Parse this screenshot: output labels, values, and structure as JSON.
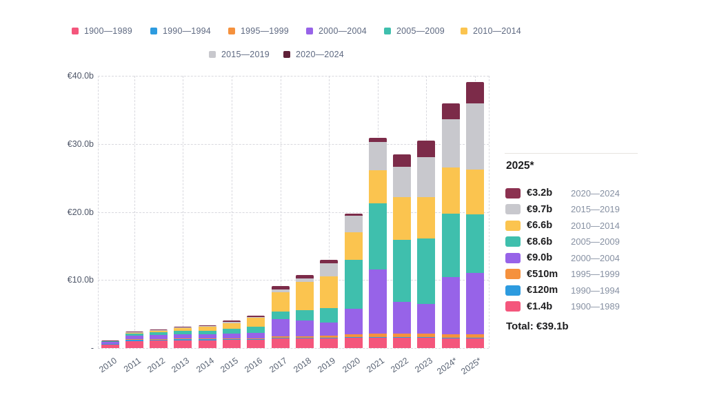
{
  "colors": {
    "1900-1989": "#F4567C",
    "1990-1994": "#2D9BDF",
    "1995-1999": "#F5913D",
    "2000-2004": "#9763E8",
    "2005-2009": "#3FBFAD",
    "2010-2014": "#FBC44F",
    "2015-2019": "#C8C8CD",
    "2020-2024": "#7C2B49"
  },
  "legend": {
    "row1": [
      {
        "label": "1900—1989",
        "color": "#F4567C"
      },
      {
        "label": "1990—1994",
        "color": "#2D9BDF"
      },
      {
        "label": "1995—1999",
        "color": "#F5913D"
      },
      {
        "label": "2000—2004",
        "color": "#9763E8"
      },
      {
        "label": "2005—2009",
        "color": "#3FBFAD"
      },
      {
        "label": "2010—2014",
        "color": "#FBC44F"
      }
    ],
    "row2": [
      {
        "label": "2015—2019",
        "color": "#C8C8CD"
      },
      {
        "label": "2020—2024",
        "color": "#5F2138"
      }
    ]
  },
  "chart_data": {
    "type": "bar",
    "stacked": true,
    "title": "",
    "xlabel": "",
    "ylabel": "",
    "ylim": [
      0,
      40
    ],
    "y_unit": "€b",
    "grid": "dashed",
    "categories": [
      "2010",
      "2011",
      "2012",
      "2013",
      "2014",
      "2015",
      "2016",
      "2017",
      "2018",
      "2019",
      "2020",
      "2021",
      "2022",
      "2023",
      "2024*",
      "2025*"
    ],
    "y_ticks": [
      {
        "value": 40,
        "label": "€40.0b"
      },
      {
        "value": 30,
        "label": "€30.0b"
      },
      {
        "value": 20,
        "label": "€20.0b"
      },
      {
        "value": 10,
        "label": "€10.0b"
      },
      {
        "value": 0,
        "label": "-"
      }
    ],
    "series": [
      {
        "name": "1900—1989",
        "color": "#F4567C",
        "values": [
          0.45,
          1.05,
          1.1,
          1.15,
          1.15,
          1.2,
          1.2,
          1.4,
          1.4,
          1.4,
          1.5,
          1.5,
          1.5,
          1.5,
          1.4,
          1.4
        ]
      },
      {
        "name": "1990—1994",
        "color": "#2D9BDF",
        "values": [
          0.15,
          0.15,
          0.15,
          0.15,
          0.15,
          0.12,
          0.1,
          0.1,
          0.1,
          0.1,
          0.1,
          0.1,
          0.1,
          0.1,
          0.1,
          0.12
        ]
      },
      {
        "name": "1995—1999",
        "color": "#F5913D",
        "values": [
          0.05,
          0.08,
          0.1,
          0.1,
          0.1,
          0.12,
          0.15,
          0.2,
          0.2,
          0.3,
          0.45,
          0.5,
          0.5,
          0.5,
          0.5,
          0.51
        ]
      },
      {
        "name": "2000—2004",
        "color": "#9763E8",
        "values": [
          0.3,
          0.5,
          0.55,
          0.6,
          0.6,
          0.65,
          0.8,
          2.5,
          2.4,
          1.9,
          3.7,
          9.4,
          4.7,
          4.4,
          8.4,
          9.0
        ]
      },
      {
        "name": "2005—2009",
        "color": "#3FBFAD",
        "values": [
          0.05,
          0.35,
          0.45,
          0.5,
          0.55,
          0.7,
          0.9,
          1.2,
          1.5,
          2.2,
          7.2,
          9.8,
          9.1,
          9.6,
          9.3,
          8.6
        ]
      },
      {
        "name": "2010—2014",
        "color": "#FBC44F",
        "values": [
          0.02,
          0.1,
          0.2,
          0.4,
          0.55,
          0.9,
          1.3,
          2.8,
          4.1,
          4.6,
          4.1,
          4.8,
          6.3,
          6.1,
          6.8,
          6.6
        ]
      },
      {
        "name": "2015—2019",
        "color": "#C8C8CD",
        "values": [
          0.01,
          0.05,
          0.05,
          0.1,
          0.1,
          0.15,
          0.15,
          0.4,
          0.5,
          2.0,
          2.4,
          4.2,
          4.4,
          5.9,
          7.1,
          9.7
        ]
      },
      {
        "name": "2020—2024",
        "color": "#7C2B49",
        "values": [
          0.05,
          0.15,
          0.15,
          0.15,
          0.15,
          0.25,
          0.2,
          0.5,
          0.5,
          0.5,
          0.3,
          0.6,
          1.9,
          2.4,
          2.4,
          3.2
        ]
      }
    ]
  },
  "tooltip_panel": {
    "title": "2025*",
    "rows": [
      {
        "value": "€3.2b",
        "range": "2020—2024",
        "color": "#8C3150"
      },
      {
        "value": "€9.7b",
        "range": "2015—2019",
        "color": "#C8C8CD"
      },
      {
        "value": "€6.6b",
        "range": "2010—2014",
        "color": "#FBC44F"
      },
      {
        "value": "€8.6b",
        "range": "2005—2009",
        "color": "#3FBFAD"
      },
      {
        "value": "€9.0b",
        "range": "2000—2004",
        "color": "#9763E8"
      },
      {
        "value": "€510m",
        "range": "1995—1999",
        "color": "#F5913D"
      },
      {
        "value": "€120m",
        "range": "1990—1994",
        "color": "#2D9BDF"
      },
      {
        "value": "€1.4b",
        "range": "1900—1989",
        "color": "#F4567C"
      }
    ],
    "total": "Total: €39.1b"
  }
}
